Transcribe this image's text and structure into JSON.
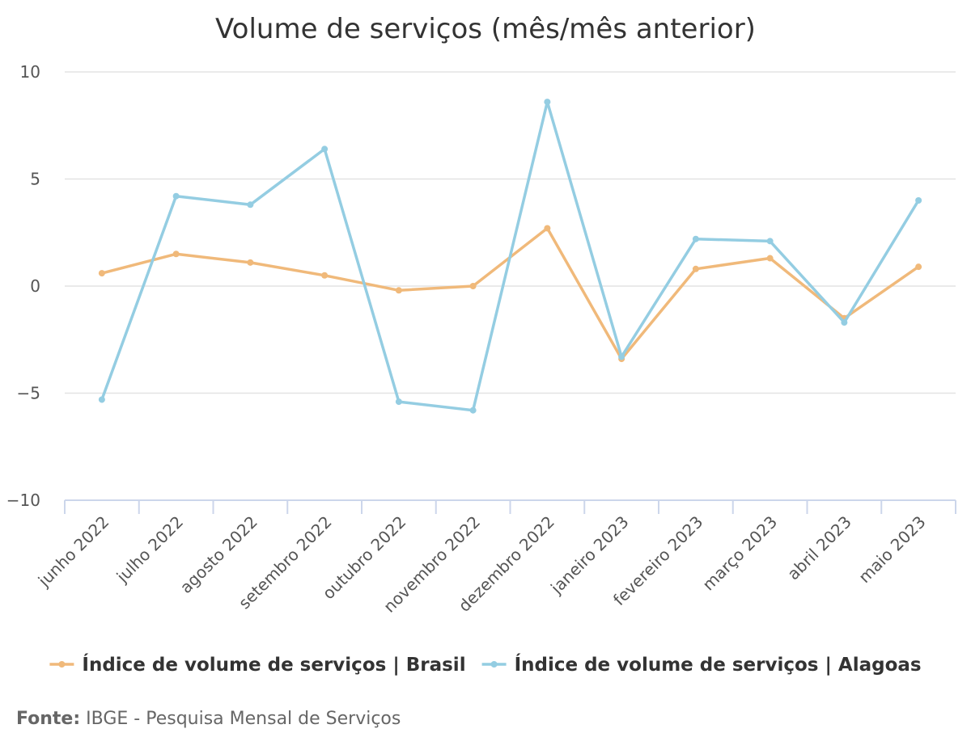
{
  "chart_data": {
    "type": "line",
    "title": "Volume de serviços (mês/mês anterior)",
    "xlabel": "",
    "ylabel": "",
    "ylim": [
      -10,
      10
    ],
    "yticks": [
      "10",
      "5",
      "0",
      "−5",
      "−10"
    ],
    "ytick_values": [
      10,
      5,
      0,
      -5,
      -10
    ],
    "grid": true,
    "legend_position": "bottom",
    "categories": [
      "junho 2022",
      "julho 2022",
      "agosto 2022",
      "setembro 2022",
      "outubro 2022",
      "novembro 2022",
      "dezembro 2022",
      "janeiro 2023",
      "fevereiro 2023",
      "março 2023",
      "abril 2023",
      "maio 2023"
    ],
    "series": [
      {
        "name": "Índice de volume de serviços | Brasil",
        "color": "#f0b97a",
        "values": [
          0.6,
          1.5,
          1.1,
          0.5,
          -0.2,
          0.0,
          2.7,
          -3.4,
          0.8,
          1.3,
          -1.5,
          0.9
        ]
      },
      {
        "name": "Índice de volume de serviços | Alagoas",
        "color": "#94cde2",
        "values": [
          -5.3,
          4.2,
          3.8,
          6.4,
          -5.4,
          -5.8,
          8.6,
          -3.3,
          2.2,
          2.1,
          -1.7,
          4.0
        ]
      }
    ]
  },
  "source": {
    "label": "Fonte:",
    "text": " IBGE - Pesquisa Mensal de Serviços"
  }
}
